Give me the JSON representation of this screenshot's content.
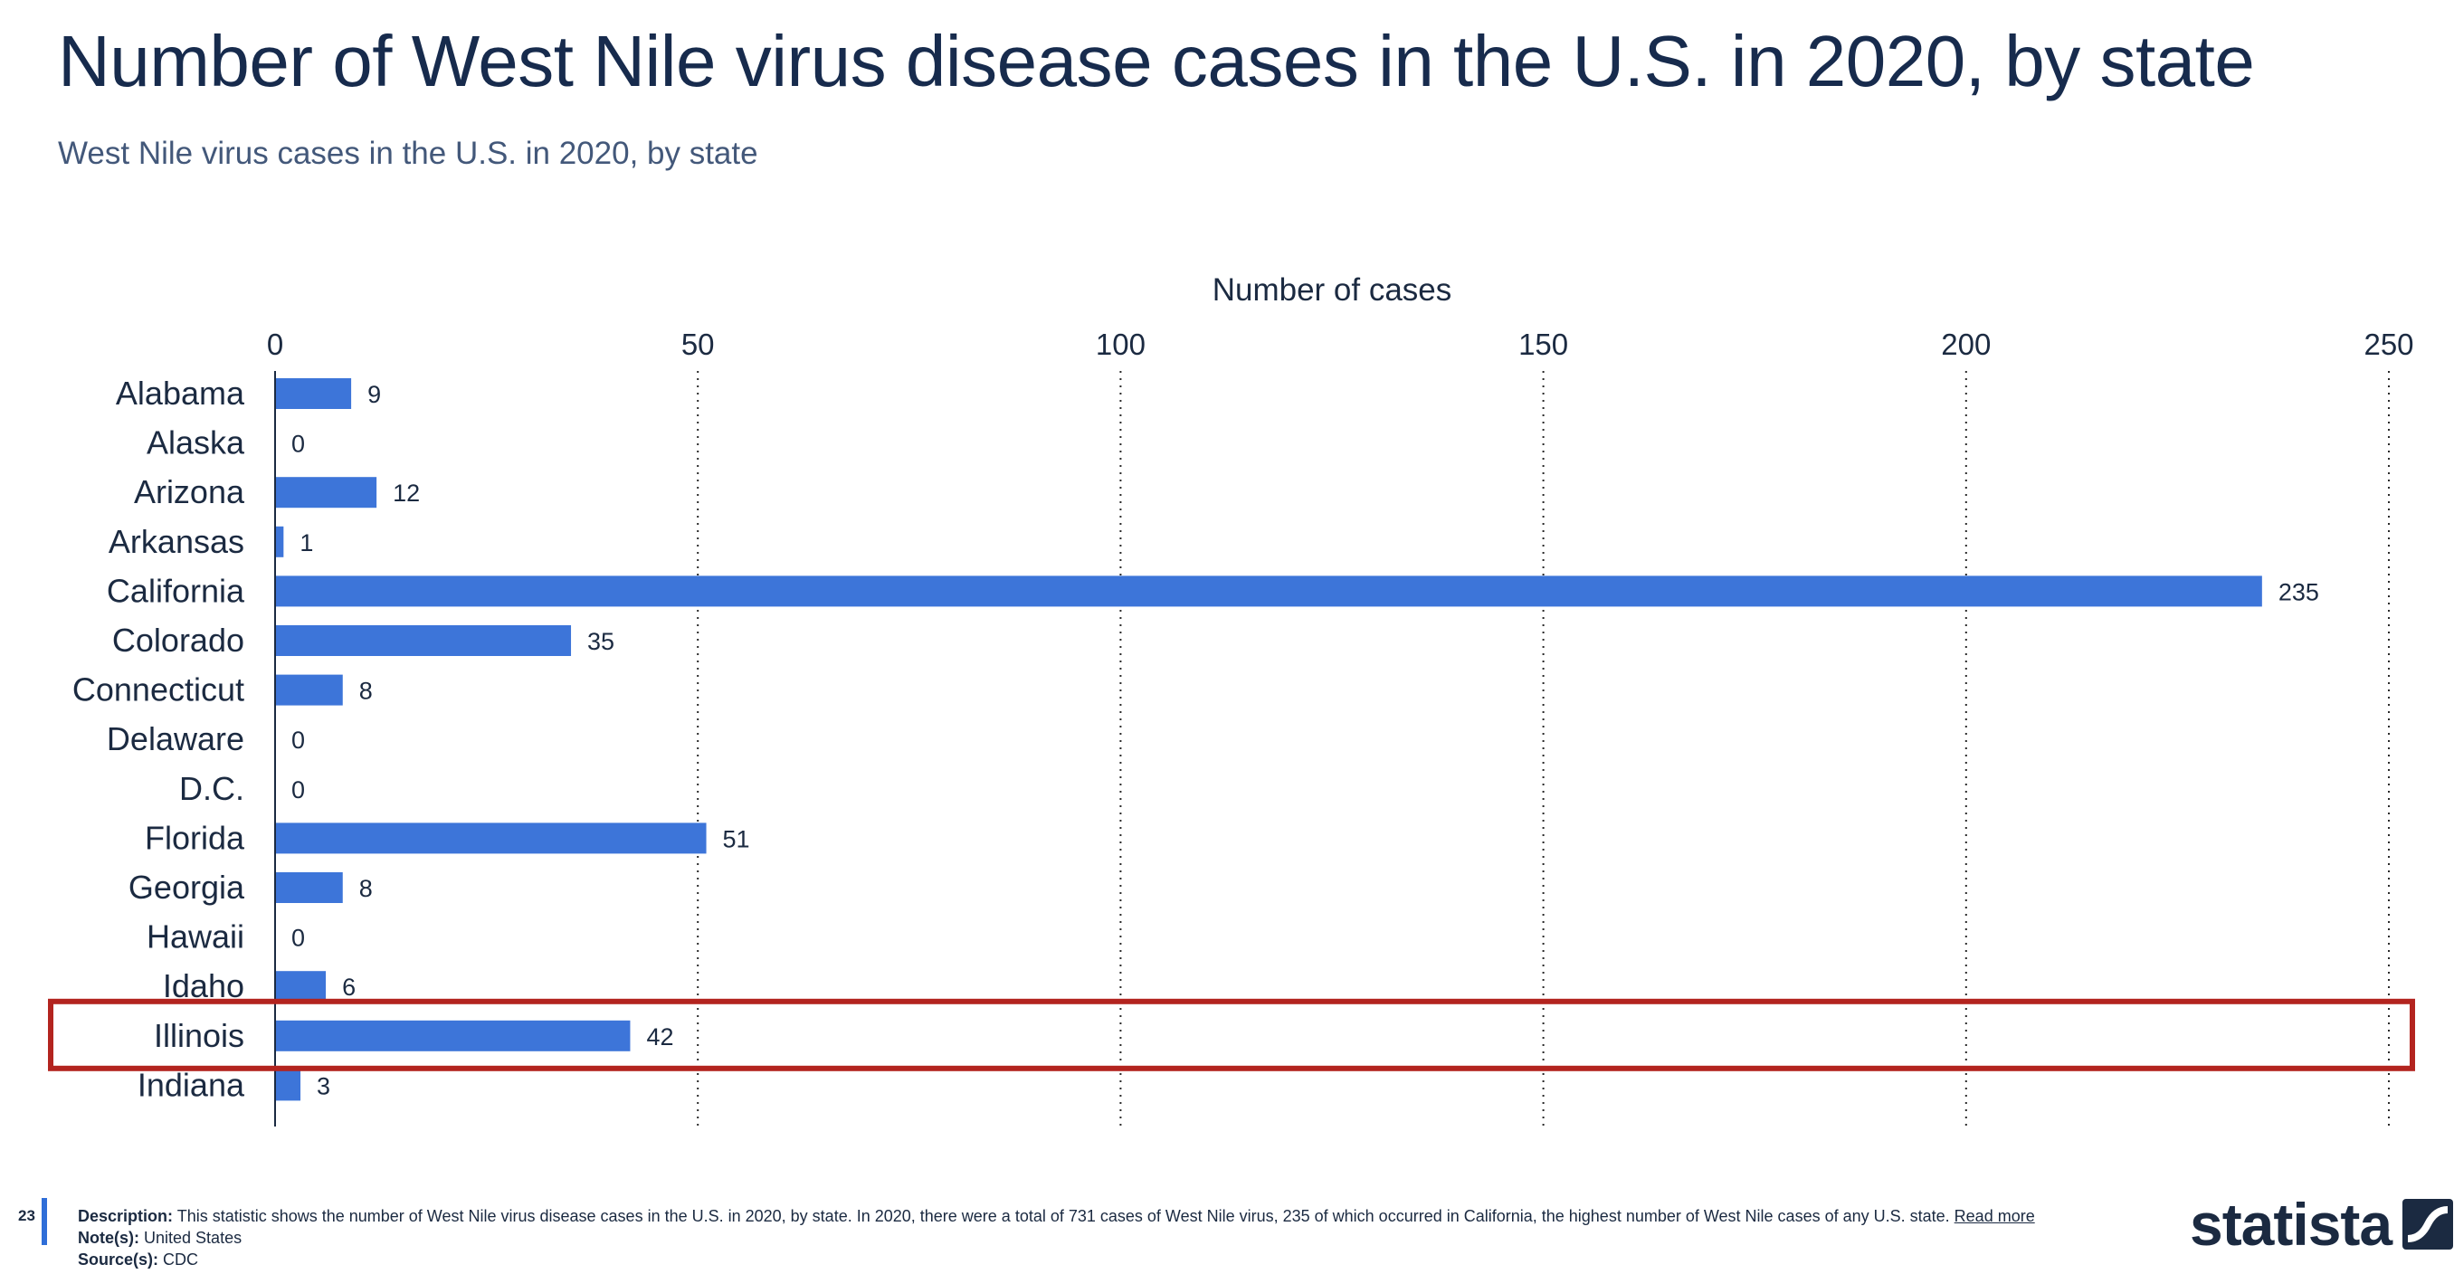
{
  "header": {
    "title": "Number of West Nile virus disease cases in the U.S. in 2020, by state",
    "subtitle": "West Nile virus cases in the U.S. in 2020, by state"
  },
  "chart_data": {
    "type": "bar",
    "orientation": "horizontal",
    "xlabel": "Number of cases",
    "ylabel": "",
    "xlim": [
      0,
      250
    ],
    "ticks": [
      0,
      50,
      100,
      150,
      200,
      250
    ],
    "grid": true,
    "legend": "none",
    "categories": [
      "Alabama",
      "Alaska",
      "Arizona",
      "Arkansas",
      "California",
      "Colorado",
      "Connecticut",
      "Delaware",
      "D.C.",
      "Florida",
      "Georgia",
      "Hawaii",
      "Idaho",
      "Illinois",
      "Indiana"
    ],
    "values": [
      9,
      0,
      12,
      1,
      235,
      35,
      8,
      0,
      0,
      51,
      8,
      0,
      6,
      42,
      3
    ],
    "highlighted_category": "Illinois",
    "bar_color": "#3d75d9",
    "highlight_color": "#b3241f"
  },
  "footer": {
    "page_number": "23",
    "description_label": "Description:",
    "description_text": "This statistic shows the number of West Nile virus disease cases in the U.S. in 2020, by state. In 2020, there were a total of 731 cases of West Nile virus, 235 of which occurred in California, the highest number of West Nile cases of any U.S. state.",
    "read_more": "Read more",
    "notes_label": "Note(s):",
    "notes_text": "United States",
    "source_label": "Source(s):",
    "source_text": "CDC"
  },
  "logo": {
    "text": "statista",
    "icon": "statista-logo-icon"
  }
}
